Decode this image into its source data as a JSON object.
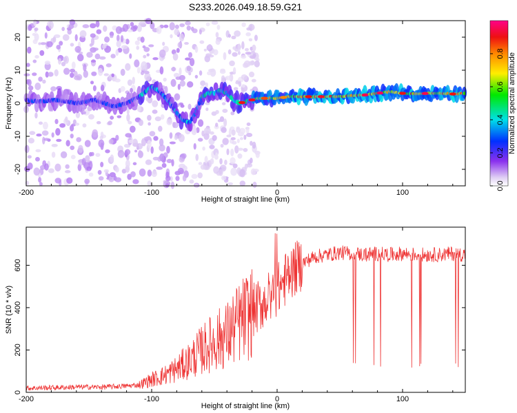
{
  "chart_data": [
    {
      "type": "heatmap",
      "title": "S233.2026.049.18.59.G21",
      "xlabel": "Height of straight line (km)",
      "ylabel": "Frequency (Hz)",
      "xlim": [
        -200,
        150
      ],
      "ylim": [
        -25,
        25
      ],
      "xticks": [
        -200,
        -100,
        0,
        100
      ],
      "yticks": [
        -20,
        -10,
        0,
        10,
        20
      ],
      "colorbar": {
        "label": "Normalized spectral amplitude",
        "range": [
          0,
          1
        ],
        "ticks": [
          "0.0",
          "0.2",
          "0.4",
          "0.6",
          "0.8"
        ],
        "colormap": "rainbow (white-lavender-violet-blue-cyan-green-yellow-orange-red-magenta)"
      },
      "ridge": {
        "description": "dominant frequency vs height",
        "x": [
          -200,
          -190,
          -175,
          -160,
          -145,
          -130,
          -120,
          -110,
          -100,
          -95,
          -90,
          -85,
          -80,
          -75,
          -70,
          -65,
          -60,
          -55,
          -50,
          -45,
          -40,
          -35,
          -30,
          -25,
          -20,
          -15,
          -10,
          -5,
          0,
          10,
          20,
          30,
          40,
          50,
          60,
          70,
          80,
          90,
          100,
          110,
          120,
          130,
          140,
          150
        ],
        "y": [
          1,
          0.5,
          1,
          0,
          1,
          -1,
          0,
          2,
          5,
          4,
          2,
          0,
          -3,
          -5,
          -6,
          -3,
          2,
          3,
          3,
          4,
          3,
          1,
          0,
          0.5,
          1,
          1.5,
          1.5,
          1.5,
          1.5,
          2,
          2,
          2,
          2,
          2,
          2.3,
          2.5,
          3,
          3.5,
          3,
          2.8,
          3,
          3,
          2.8,
          3
        ]
      }
    },
    {
      "type": "line",
      "xlabel": "Height of straight line (km)",
      "ylabel": "SNR (10 * v/v)",
      "xlim": [
        -200,
        150
      ],
      "ylim": [
        0,
        780
      ],
      "xticks": [
        -200,
        -100,
        0,
        100
      ],
      "yticks": [
        0,
        200,
        400,
        600
      ],
      "series": [
        {
          "name": "SNR",
          "color": "#ee3333",
          "x": [
            -200,
            -180,
            -160,
            -140,
            -120,
            -110,
            -100,
            -90,
            -80,
            -70,
            -60,
            -50,
            -40,
            -30,
            -20,
            -10,
            0,
            10,
            20,
            30,
            40,
            50,
            60,
            70,
            80,
            90,
            100,
            110,
            120,
            130,
            140,
            150
          ],
          "y": [
            20,
            22,
            25,
            25,
            30,
            35,
            60,
            80,
            110,
            150,
            200,
            240,
            270,
            330,
            380,
            430,
            480,
            560,
            610,
            640,
            650,
            660,
            655,
            650,
            655,
            650,
            655,
            650,
            650,
            650,
            655,
            650
          ]
        }
      ]
    }
  ]
}
